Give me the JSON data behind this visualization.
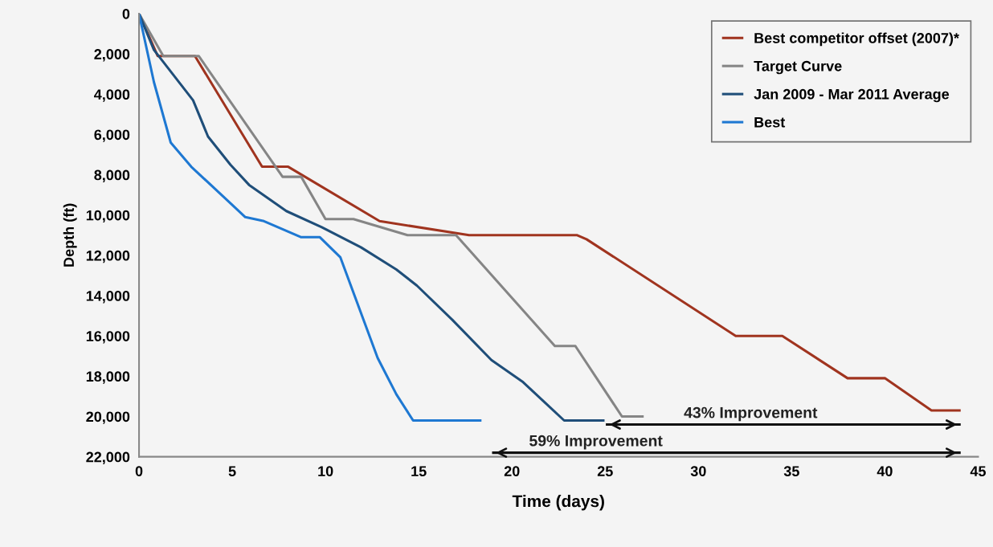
{
  "chart_data": {
    "type": "line",
    "xlabel": "Time (days)",
    "ylabel": "Depth (ft)",
    "xlim": [
      0,
      45
    ],
    "xticks": [
      0,
      5,
      10,
      15,
      20,
      25,
      30,
      35,
      40,
      45
    ],
    "ylim": [
      22000,
      0
    ],
    "yticks": [
      0,
      {
        "value": 2000,
        "label": "2,000"
      },
      {
        "value": 4000,
        "label": "4,000"
      },
      {
        "value": 6000,
        "label": "6,000"
      },
      {
        "value": 8000,
        "label": "8,000"
      },
      {
        "value": 10000,
        "label": "10,000"
      },
      {
        "value": 12000,
        "label": "12,000"
      },
      {
        "value": 14000,
        "label": "14,000"
      },
      {
        "value": 16000,
        "label": "16,000"
      },
      {
        "value": 18000,
        "label": "18,000"
      },
      {
        "value": 20000,
        "label": "20,000"
      },
      {
        "value": 22000,
        "label": "22,000"
      }
    ],
    "grid": false,
    "legend": "top right",
    "marker": "none",
    "line_style": "solid",
    "series": [
      {
        "name": "Best competitor offset (2007)*",
        "color": "#a0341f",
        "x": [
          0,
          1,
          3,
          6.6,
          8,
          12.9,
          17.7,
          23.5,
          24,
          32,
          34.5,
          38,
          40,
          42.5,
          44
        ],
        "values": [
          0,
          2100,
          2100,
          7600,
          7600,
          10300,
          11000,
          11000,
          11200,
          16000,
          16000,
          18100,
          18100,
          19700,
          19700
        ]
      },
      {
        "name": "Target Curve",
        "color": "#858585",
        "x": [
          0,
          1.3,
          3.2,
          7.7,
          8.7,
          10,
          11.5,
          14.4,
          17,
          22.3,
          23.4,
          25.9,
          27
        ],
        "values": [
          0,
          2100,
          2100,
          8100,
          8100,
          10200,
          10200,
          11000,
          11000,
          16500,
          16500,
          20000,
          20000
        ]
      },
      {
        "name": "Jan 2009 - Mar 2011 Average",
        "color": "#1f4e79",
        "x": [
          0,
          0.8,
          2.9,
          3.7,
          4.9,
          5.9,
          7.9,
          9.8,
          11.9,
          13.8,
          14.9,
          16.8,
          18.9,
          20.6,
          22.8,
          24.9
        ],
        "values": [
          0,
          1800,
          4300,
          6100,
          7500,
          8500,
          9800,
          10600,
          11600,
          12700,
          13500,
          15200,
          17200,
          18300,
          20200,
          20200
        ]
      },
      {
        "name": "Best",
        "color": "#1e78d2",
        "x": [
          0,
          0.8,
          1.7,
          2.8,
          5.7,
          6.7,
          8.7,
          9.7,
          10.8,
          12.8,
          13.8,
          14.7,
          18.3
        ],
        "values": [
          0,
          3400,
          6400,
          7600,
          10100,
          10300,
          11100,
          11100,
          12100,
          17100,
          18900,
          20200,
          20200
        ]
      },
      {
        "color": "#111111",
        "x": [
          25.1,
          44
        ],
        "values": [
          20400,
          20400
        ]
      },
      {
        "color": "#111111",
        "x": [
          19,
          44
        ],
        "values": [
          21800,
          21800
        ]
      }
    ],
    "annotations": [
      {
        "text": "43% Improvement",
        "x": 32.8,
        "y": 20400
      },
      {
        "text": "59% Improvement",
        "x": 24.5,
        "y": 21800
      }
    ]
  }
}
